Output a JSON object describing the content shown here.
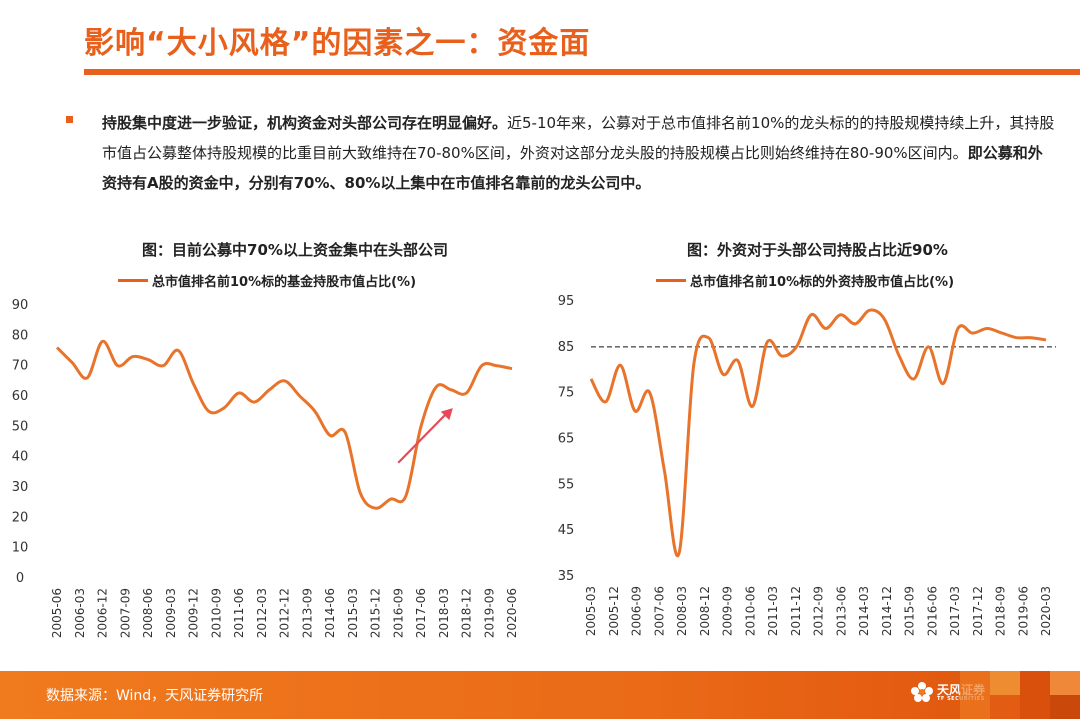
{
  "slide": {
    "title": "影响“大小风格”的因素之一：资金面",
    "bullet_bold_1": "持股集中度进一步验证，机构资金对头部公司存在明显偏好。",
    "bullet_normal": "近5-10年来，公募对于总市值排名前10%的龙头标的的持股规模持续上升，其持股市值占公募整体持股规模的比重目前大致维持在70-80%区间，外资对这部分龙头股的持股规模占比则始终维持在80-90%区间内。",
    "bullet_bold_2": "即公募和外资持有A股的资金中，分别有70%、80%以上集中在市值排名靠前的龙头公司中。"
  },
  "footer": {
    "source": "数据来源：Wind，天风证券研究所",
    "logo_text": "天风证券",
    "logo_sub": "TF SECURITIES"
  },
  "colors": {
    "accent": "#e8601c",
    "line": "#e8732a",
    "arrow": "#e8495a",
    "reference_line": "#555555"
  },
  "chart_data": [
    {
      "type": "line",
      "title": "图：目前公募中70%以上资金集中在头部公司",
      "series": [
        {
          "name": "总市值排名前10%标的基金持股市值占比(%)",
          "x": [
            "2005-06",
            "2005-12",
            "2006-06",
            "2006-12",
            "2007-06",
            "2007-12",
            "2008-06",
            "2008-12",
            "2009-06",
            "2009-12",
            "2010-06",
            "2010-12",
            "2011-06",
            "2011-12",
            "2012-06",
            "2012-12",
            "2013-06",
            "2013-12",
            "2014-06",
            "2014-12",
            "2015-06",
            "2015-12",
            "2016-06",
            "2016-12",
            "2017-06",
            "2017-12",
            "2018-06",
            "2018-12",
            "2019-06",
            "2019-12",
            "2020-06"
          ],
          "values": [
            76,
            71,
            66,
            78,
            70,
            73,
            72,
            70,
            75,
            64,
            55,
            56,
            61,
            58,
            62,
            65,
            60,
            55,
            47,
            48,
            28,
            23,
            26,
            27,
            50,
            63,
            62,
            61,
            70,
            70,
            69
          ]
        }
      ],
      "x_tick_labels": [
        "2005-06",
        "2006-03",
        "2006-12",
        "2007-09",
        "2008-06",
        "2009-03",
        "2009-12",
        "2010-09",
        "2011-06",
        "2012-03",
        "2012-12",
        "2013-09",
        "2014-06",
        "2015-03",
        "2015-12",
        "2016-09",
        "2017-06",
        "2018-03",
        "2018-12",
        "2019-09",
        "2020-06"
      ],
      "y_ticks": [
        0,
        10,
        20,
        30,
        40,
        50,
        60,
        70,
        80,
        90
      ],
      "ylim": [
        0,
        90
      ],
      "annotation": "upward arrow",
      "legend": "top"
    },
    {
      "type": "line",
      "title": "图：外资对于头部公司持股占比近90%",
      "series": [
        {
          "name": "总市值排名前10%标的外资持股市值占比(%)",
          "x": [
            "2005-03",
            "2005-09",
            "2006-03",
            "2006-09",
            "2007-03",
            "2007-09",
            "2008-03",
            "2008-09",
            "2009-03",
            "2009-09",
            "2010-03",
            "2010-09",
            "2011-03",
            "2011-09",
            "2012-03",
            "2012-09",
            "2013-03",
            "2013-09",
            "2014-03",
            "2014-09",
            "2015-03",
            "2015-09",
            "2016-03",
            "2016-09",
            "2017-03",
            "2017-09",
            "2018-03",
            "2018-09",
            "2019-03",
            "2019-09",
            "2020-03",
            "2020-06"
          ],
          "values": [
            78,
            73,
            81,
            71,
            75,
            58,
            40,
            81,
            87,
            79,
            82,
            72,
            86,
            83,
            85,
            92,
            89,
            92,
            90,
            93,
            91,
            83,
            78,
            85,
            77,
            89,
            88,
            89,
            88,
            87,
            87,
            86.5
          ]
        }
      ],
      "reference_line": 85,
      "x_tick_labels": [
        "2005-03",
        "2005-12",
        "2006-09",
        "2007-06",
        "2008-03",
        "2008-12",
        "2009-09",
        "2010-06",
        "2011-03",
        "2011-12",
        "2012-09",
        "2013-06",
        "2014-03",
        "2014-12",
        "2015-09",
        "2016-06",
        "2017-03",
        "2017-12",
        "2018-09",
        "2019-06",
        "2020-03"
      ],
      "y_ticks": [
        35,
        45,
        55,
        65,
        75,
        85,
        95
      ],
      "ylim": [
        35,
        95
      ],
      "legend": "top"
    }
  ]
}
